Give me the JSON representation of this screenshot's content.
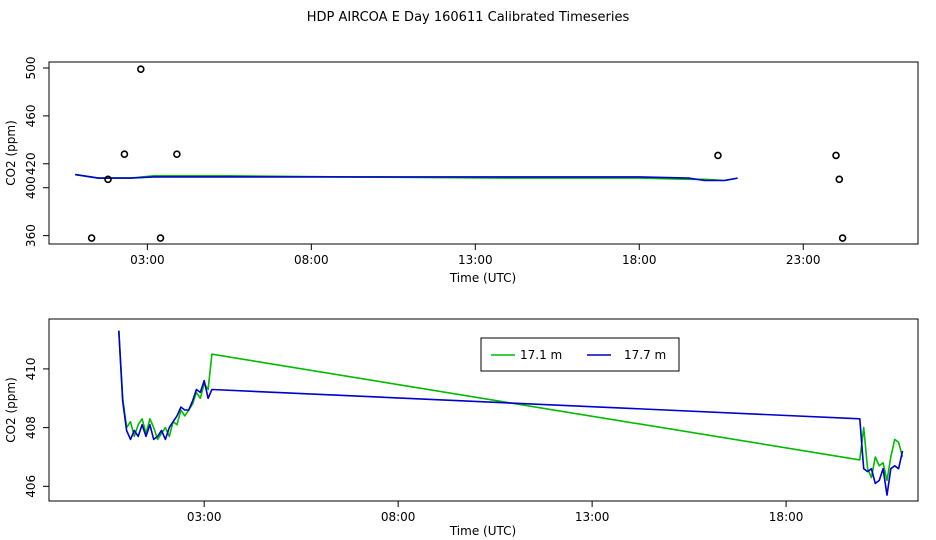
{
  "title": "HDP AIRCOA E  Day 160611  Calibrated Timeseries",
  "colors": {
    "green": "#00bb00",
    "blue": "#0000cc",
    "outliers": "#000000"
  },
  "chart_data": [
    {
      "type": "line",
      "panel": "top",
      "xlabel": "Time (UTC)",
      "ylabel": "CO2 (ppm)",
      "xlim": [
        0.0,
        26.5
      ],
      "ylim": [
        353,
        505
      ],
      "xticks": [
        3,
        8,
        13,
        18,
        23
      ],
      "xtick_labels": [
        "03:00",
        "08:00",
        "13:00",
        "18:00",
        "23:00"
      ],
      "yticks": [
        360,
        400,
        420,
        460,
        500
      ],
      "ytick_labels": [
        "360",
        "400",
        "420",
        "460",
        "500"
      ],
      "grid": false,
      "series": [
        {
          "name": "17.1 m",
          "color": "#00bb00",
          "x": [
            0.8,
            1.5,
            2.5,
            3.2,
            5.5,
            9.0,
            14.0,
            18.0,
            19.5,
            20.0,
            20.6,
            21.0
          ],
          "y": [
            411,
            408,
            408,
            410,
            410,
            409,
            408,
            408,
            407,
            407,
            406,
            408
          ]
        },
        {
          "name": "17.7 m",
          "color": "#0000cc",
          "x": [
            0.8,
            1.5,
            2.5,
            3.2,
            5.5,
            9.0,
            14.0,
            18.0,
            19.5,
            20.0,
            20.6,
            21.0
          ],
          "y": [
            411,
            408,
            408,
            409,
            409,
            409,
            409,
            409,
            408,
            406,
            406,
            408
          ]
        }
      ],
      "outliers": {
        "x": [
          1.3,
          1.8,
          2.3,
          2.8,
          3.4,
          3.9,
          20.4,
          24.0,
          24.1,
          24.2
        ],
        "y": [
          358,
          407,
          428,
          499,
          358,
          428,
          427,
          427,
          407,
          358
        ]
      }
    },
    {
      "type": "line",
      "panel": "bottom",
      "xlabel": "Time (UTC)",
      "ylabel": "CO2 (ppm)",
      "xlim": [
        -1.0,
        21.4
      ],
      "ylim": [
        405.5,
        411.7
      ],
      "xticks": [
        3,
        8,
        13,
        18
      ],
      "xtick_labels": [
        "03:00",
        "08:00",
        "13:00",
        "18:00"
      ],
      "yticks": [
        406,
        408,
        410
      ],
      "ytick_labels": [
        "406",
        "408",
        "410"
      ],
      "grid": false,
      "legend": "top-center",
      "series": [
        {
          "name": "17.1 m",
          "color": "#00bb00",
          "x": [
            0.8,
            0.9,
            1.0,
            1.1,
            1.2,
            1.3,
            1.4,
            1.5,
            1.6,
            1.7,
            1.8,
            1.9,
            2.0,
            2.1,
            2.2,
            2.3,
            2.4,
            2.5,
            2.6,
            2.7,
            2.8,
            2.9,
            3.0,
            3.1,
            3.2,
            19.9,
            20.0,
            20.1,
            20.2,
            20.3,
            20.4,
            20.5,
            20.6,
            20.7,
            20.8,
            20.9,
            21.0
          ],
          "y": [
            411.3,
            409.0,
            408.0,
            408.2,
            407.7,
            408.1,
            408.3,
            407.8,
            408.3,
            408.0,
            407.6,
            407.8,
            408.0,
            407.7,
            408.2,
            408.1,
            408.6,
            408.4,
            408.6,
            408.8,
            409.2,
            409.0,
            409.5,
            409.3,
            410.5,
            406.9,
            408.0,
            406.6,
            406.3,
            407.0,
            406.7,
            406.8,
            406.2,
            407.0,
            407.6,
            407.5,
            407.0
          ],
          "thin_segment": true
        },
        {
          "name": "17.7 m",
          "color": "#0000cc",
          "x": [
            0.8,
            0.9,
            1.0,
            1.1,
            1.2,
            1.3,
            1.4,
            1.5,
            1.6,
            1.7,
            1.8,
            1.9,
            2.0,
            2.1,
            2.2,
            2.3,
            2.4,
            2.5,
            2.6,
            2.7,
            2.8,
            2.9,
            3.0,
            3.1,
            3.2,
            19.9,
            20.0,
            20.1,
            20.2,
            20.3,
            20.4,
            20.5,
            20.6,
            20.7,
            20.8,
            20.9,
            21.0
          ],
          "y": [
            411.3,
            408.9,
            407.9,
            407.6,
            407.9,
            407.7,
            408.1,
            407.7,
            408.1,
            407.6,
            407.7,
            407.9,
            407.6,
            408.0,
            408.2,
            408.4,
            408.7,
            408.6,
            408.6,
            408.9,
            409.3,
            409.2,
            409.6,
            409.0,
            409.3,
            408.3,
            406.6,
            406.5,
            406.6,
            406.1,
            406.2,
            406.6,
            405.7,
            406.6,
            406.7,
            406.6,
            407.2
          ]
        }
      ]
    }
  ]
}
